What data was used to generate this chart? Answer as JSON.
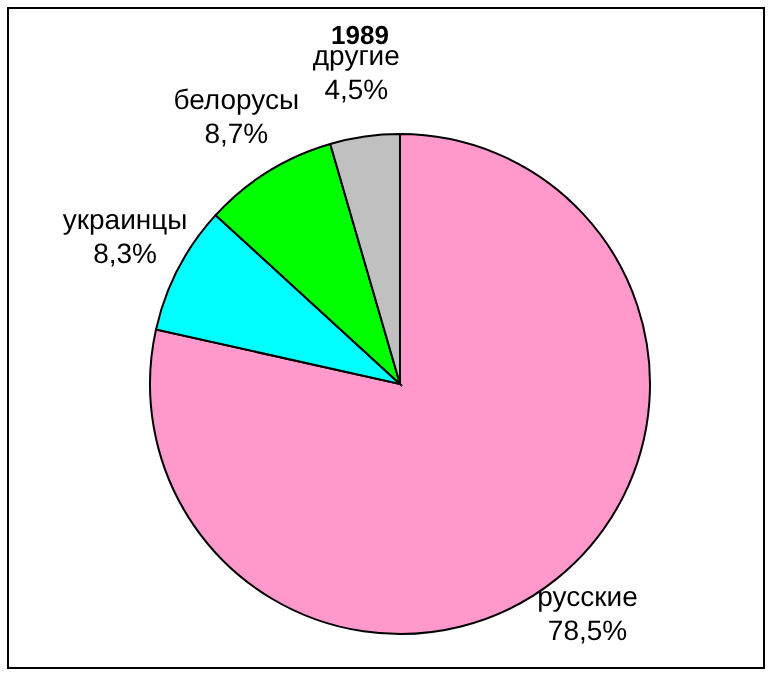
{
  "chart_data": {
    "type": "pie",
    "title": "1989",
    "categories": [
      "русские",
      "украинцы",
      "белорусы",
      "другие"
    ],
    "values": [
      78.5,
      8.3,
      8.7,
      4.5
    ],
    "colors": [
      "#ff99cc",
      "#00ffff",
      "#00ff00",
      "#c0c0c0"
    ],
    "value_labels": [
      "78,5%",
      "8,3%",
      "8,7%",
      "4,5%"
    ]
  }
}
